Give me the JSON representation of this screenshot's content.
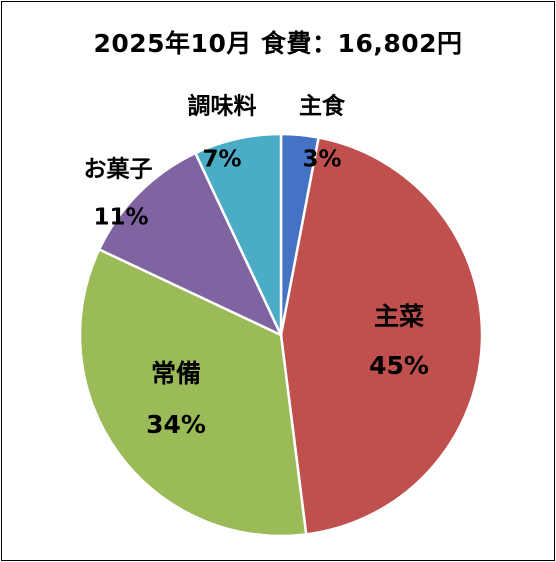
{
  "title": "2025年10月 食費：16,802円",
  "chart_data": {
    "type": "pie",
    "title": "2025年10月 食費：16,802円",
    "slices": [
      {
        "label": "主食",
        "value_label": "3%",
        "value": 3,
        "color": "#4472C4"
      },
      {
        "label": "主菜",
        "value_label": "45%",
        "value": 45,
        "color": "#C0504D"
      },
      {
        "label": "常備",
        "value_label": "34%",
        "value": 34,
        "color": "#9BBB59"
      },
      {
        "label": "お菓子",
        "value_label": "11%",
        "value": 11,
        "color": "#8064A2"
      },
      {
        "label": "調味料",
        "value_label": "7%",
        "value": 7,
        "color": "#4BACC6"
      }
    ],
    "start_angle": "12 o'clock",
    "direction": "clockwise",
    "legend": "none",
    "data_labels": "category and percentage"
  }
}
